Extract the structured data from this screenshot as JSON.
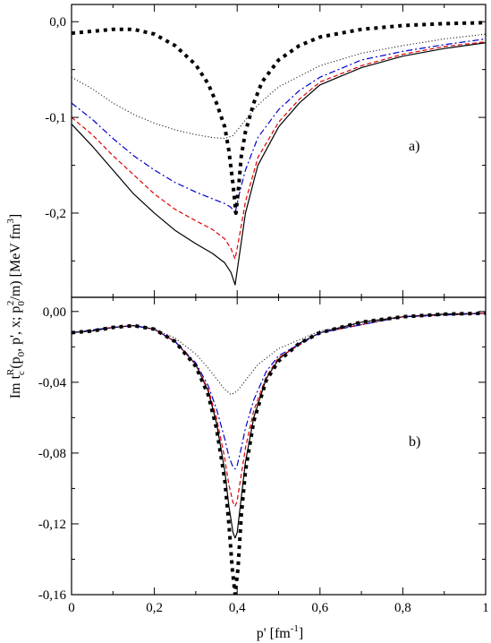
{
  "ylabel_parts": {
    "a": "Im t",
    "b": "c",
    "c": "R",
    "d": "(p",
    "e": "0",
    "f": ", p', x; p",
    "g": "0",
    "h": "2",
    "i": "/m) [MeV fm",
    "j": "3",
    "k": "]"
  },
  "xlabel_parts": {
    "a": "p' [fm",
    "b": "-1",
    "c": "]"
  },
  "chart_data": [
    {
      "type": "line",
      "panel_label": "a)",
      "xlim": [
        0,
        1
      ],
      "ylim": [
        -0.288,
        0.018
      ],
      "x_ticks": [
        0,
        0.2,
        0.4,
        0.6,
        0.8,
        1.0
      ],
      "y_ticks": [
        -0.2,
        -0.1,
        0.0
      ],
      "y_tick_labels": [
        "-0,2",
        "-0,1",
        "0,0"
      ],
      "x_tick_labels": [],
      "series": [
        {
          "style": "solid",
          "color": "#000000",
          "points": [
            [
              0,
              -0.107
            ],
            [
              0.05,
              -0.13
            ],
            [
              0.1,
              -0.155
            ],
            [
              0.15,
              -0.18
            ],
            [
              0.2,
              -0.2
            ],
            [
              0.25,
              -0.218
            ],
            [
              0.3,
              -0.232
            ],
            [
              0.34,
              -0.242
            ],
            [
              0.37,
              -0.252
            ],
            [
              0.385,
              -0.262
            ],
            [
              0.395,
              -0.275
            ],
            [
              0.405,
              -0.245
            ],
            [
              0.42,
              -0.2
            ],
            [
              0.45,
              -0.15
            ],
            [
              0.5,
              -0.11
            ],
            [
              0.55,
              -0.085
            ],
            [
              0.6,
              -0.066
            ],
            [
              0.7,
              -0.048
            ],
            [
              0.8,
              -0.036
            ],
            [
              0.9,
              -0.028
            ],
            [
              1.0,
              -0.022
            ]
          ]
        },
        {
          "style": "dashed",
          "color": "#dd0000",
          "points": [
            [
              0,
              -0.1
            ],
            [
              0.05,
              -0.118
            ],
            [
              0.1,
              -0.14
            ],
            [
              0.15,
              -0.16
            ],
            [
              0.2,
              -0.18
            ],
            [
              0.25,
              -0.196
            ],
            [
              0.3,
              -0.208
            ],
            [
              0.34,
              -0.217
            ],
            [
              0.37,
              -0.227
            ],
            [
              0.385,
              -0.237
            ],
            [
              0.395,
              -0.248
            ],
            [
              0.405,
              -0.225
            ],
            [
              0.42,
              -0.188
            ],
            [
              0.45,
              -0.142
            ],
            [
              0.5,
              -0.105
            ],
            [
              0.55,
              -0.081
            ],
            [
              0.6,
              -0.063
            ],
            [
              0.7,
              -0.046
            ],
            [
              0.8,
              -0.034
            ],
            [
              0.9,
              -0.026
            ],
            [
              1.0,
              -0.021
            ]
          ]
        },
        {
          "style": "dashdot",
          "color": "#0000cc",
          "points": [
            [
              0,
              -0.085
            ],
            [
              0.05,
              -0.102
            ],
            [
              0.1,
              -0.122
            ],
            [
              0.15,
              -0.14
            ],
            [
              0.2,
              -0.155
            ],
            [
              0.25,
              -0.168
            ],
            [
              0.3,
              -0.178
            ],
            [
              0.34,
              -0.185
            ],
            [
              0.37,
              -0.19
            ],
            [
              0.385,
              -0.194
            ],
            [
              0.395,
              -0.2
            ],
            [
              0.405,
              -0.18
            ],
            [
              0.42,
              -0.155
            ],
            [
              0.45,
              -0.121
            ],
            [
              0.5,
              -0.092
            ],
            [
              0.55,
              -0.072
            ],
            [
              0.6,
              -0.058
            ],
            [
              0.7,
              -0.04
            ],
            [
              0.8,
              -0.031
            ],
            [
              0.9,
              -0.024
            ],
            [
              1.0,
              -0.018
            ]
          ]
        },
        {
          "style": "dotted",
          "color": "#000000",
          "points": [
            [
              0,
              -0.058
            ],
            [
              0.05,
              -0.07
            ],
            [
              0.1,
              -0.085
            ],
            [
              0.15,
              -0.097
            ],
            [
              0.2,
              -0.106
            ],
            [
              0.25,
              -0.113
            ],
            [
              0.3,
              -0.118
            ],
            [
              0.34,
              -0.121
            ],
            [
              0.37,
              -0.122
            ],
            [
              0.39,
              -0.119
            ],
            [
              0.41,
              -0.108
            ],
            [
              0.45,
              -0.087
            ],
            [
              0.5,
              -0.068
            ],
            [
              0.6,
              -0.046
            ],
            [
              0.7,
              -0.033
            ],
            [
              0.8,
              -0.025
            ],
            [
              0.9,
              -0.018
            ],
            [
              1.0,
              -0.013
            ]
          ]
        },
        {
          "style": "bigdot",
          "color": "#000000",
          "points": [
            [
              0,
              -0.012
            ],
            [
              0.05,
              -0.01
            ],
            [
              0.1,
              -0.008
            ],
            [
              0.15,
              -0.008
            ],
            [
              0.2,
              -0.013
            ],
            [
              0.25,
              -0.025
            ],
            [
              0.3,
              -0.045
            ],
            [
              0.33,
              -0.065
            ],
            [
              0.35,
              -0.085
            ],
            [
              0.37,
              -0.11
            ],
            [
              0.38,
              -0.135
            ],
            [
              0.39,
              -0.17
            ],
            [
              0.397,
              -0.2
            ],
            [
              0.404,
              -0.17
            ],
            [
              0.41,
              -0.14
            ],
            [
              0.42,
              -0.115
            ],
            [
              0.44,
              -0.085
            ],
            [
              0.46,
              -0.063
            ],
            [
              0.5,
              -0.04
            ],
            [
              0.55,
              -0.025
            ],
            [
              0.6,
              -0.016
            ],
            [
              0.7,
              -0.008
            ],
            [
              0.8,
              -0.004
            ],
            [
              0.9,
              -0.002
            ],
            [
              1.0,
              -0.001
            ]
          ]
        }
      ]
    },
    {
      "type": "line",
      "panel_label": "b)",
      "xlim": [
        0,
        1
      ],
      "ylim": [
        -0.16,
        0.008
      ],
      "x_ticks": [
        0,
        0.2,
        0.4,
        0.6,
        0.8,
        1.0
      ],
      "y_ticks": [
        -0.16,
        -0.12,
        -0.08,
        -0.04,
        0.0
      ],
      "y_tick_labels": [
        "-0,16",
        "-0,12",
        "-0,08",
        "-0,04",
        "0,00"
      ],
      "x_tick_labels": [
        "0",
        "0,2",
        "0,4",
        "0,6",
        "0,8",
        "1"
      ],
      "series": [
        {
          "style": "solid",
          "color": "#000000",
          "points": [
            [
              0,
              -0.012
            ],
            [
              0.05,
              -0.011
            ],
            [
              0.1,
              -0.009
            ],
            [
              0.15,
              -0.008
            ],
            [
              0.2,
              -0.01
            ],
            [
              0.25,
              -0.017
            ],
            [
              0.3,
              -0.03
            ],
            [
              0.33,
              -0.045
            ],
            [
              0.35,
              -0.063
            ],
            [
              0.37,
              -0.09
            ],
            [
              0.38,
              -0.11
            ],
            [
              0.39,
              -0.125
            ],
            [
              0.395,
              -0.128
            ],
            [
              0.4,
              -0.125
            ],
            [
              0.41,
              -0.105
            ],
            [
              0.42,
              -0.085
            ],
            [
              0.44,
              -0.06
            ],
            [
              0.47,
              -0.038
            ],
            [
              0.5,
              -0.027
            ],
            [
              0.55,
              -0.018
            ],
            [
              0.6,
              -0.012
            ],
            [
              0.7,
              -0.006
            ],
            [
              0.8,
              -0.003
            ],
            [
              0.9,
              -0.0015
            ],
            [
              1.0,
              -0.001
            ]
          ]
        },
        {
          "style": "dashed",
          "color": "#dd0000",
          "points": [
            [
              0,
              -0.012
            ],
            [
              0.1,
              -0.009
            ],
            [
              0.15,
              -0.008
            ],
            [
              0.2,
              -0.01
            ],
            [
              0.25,
              -0.017
            ],
            [
              0.3,
              -0.03
            ],
            [
              0.33,
              -0.044
            ],
            [
              0.35,
              -0.06
            ],
            [
              0.37,
              -0.083
            ],
            [
              0.38,
              -0.098
            ],
            [
              0.39,
              -0.108
            ],
            [
              0.395,
              -0.11
            ],
            [
              0.4,
              -0.107
            ],
            [
              0.41,
              -0.092
            ],
            [
              0.42,
              -0.077
            ],
            [
              0.44,
              -0.056
            ],
            [
              0.47,
              -0.037
            ],
            [
              0.5,
              -0.026
            ],
            [
              0.6,
              -0.012
            ],
            [
              0.8,
              -0.003
            ],
            [
              1.0,
              -0.001
            ]
          ]
        },
        {
          "style": "dashdot",
          "color": "#0000cc",
          "points": [
            [
              0,
              -0.012
            ],
            [
              0.1,
              -0.009
            ],
            [
              0.15,
              -0.008
            ],
            [
              0.2,
              -0.01
            ],
            [
              0.25,
              -0.017
            ],
            [
              0.3,
              -0.029
            ],
            [
              0.33,
              -0.042
            ],
            [
              0.35,
              -0.055
            ],
            [
              0.37,
              -0.072
            ],
            [
              0.38,
              -0.082
            ],
            [
              0.39,
              -0.088
            ],
            [
              0.395,
              -0.089
            ],
            [
              0.4,
              -0.087
            ],
            [
              0.41,
              -0.077
            ],
            [
              0.42,
              -0.066
            ],
            [
              0.44,
              -0.05
            ],
            [
              0.47,
              -0.034
            ],
            [
              0.5,
              -0.025
            ],
            [
              0.6,
              -0.012
            ],
            [
              0.8,
              -0.003
            ],
            [
              1.0,
              -0.001
            ]
          ]
        },
        {
          "style": "dotted",
          "color": "#000000",
          "points": [
            [
              0,
              -0.012
            ],
            [
              0.1,
              -0.009
            ],
            [
              0.15,
              -0.008
            ],
            [
              0.2,
              -0.01
            ],
            [
              0.25,
              -0.015
            ],
            [
              0.3,
              -0.024
            ],
            [
              0.33,
              -0.032
            ],
            [
              0.35,
              -0.038
            ],
            [
              0.37,
              -0.044
            ],
            [
              0.385,
              -0.047
            ],
            [
              0.4,
              -0.045
            ],
            [
              0.42,
              -0.039
            ],
            [
              0.45,
              -0.03
            ],
            [
              0.5,
              -0.021
            ],
            [
              0.6,
              -0.011
            ],
            [
              0.8,
              -0.003
            ],
            [
              1.0,
              -0.001
            ]
          ]
        },
        {
          "style": "bigdot",
          "color": "#000000",
          "points": [
            [
              0,
              -0.012
            ],
            [
              0.05,
              -0.011
            ],
            [
              0.1,
              -0.009
            ],
            [
              0.15,
              -0.008
            ],
            [
              0.2,
              -0.01
            ],
            [
              0.25,
              -0.017
            ],
            [
              0.3,
              -0.031
            ],
            [
              0.33,
              -0.047
            ],
            [
              0.35,
              -0.066
            ],
            [
              0.37,
              -0.095
            ],
            [
              0.38,
              -0.12
            ],
            [
              0.388,
              -0.145
            ],
            [
              0.395,
              -0.16
            ],
            [
              0.402,
              -0.145
            ],
            [
              0.41,
              -0.115
            ],
            [
              0.42,
              -0.09
            ],
            [
              0.44,
              -0.062
            ],
            [
              0.47,
              -0.039
            ],
            [
              0.5,
              -0.028
            ],
            [
              0.55,
              -0.018
            ],
            [
              0.6,
              -0.012
            ],
            [
              0.7,
              -0.006
            ],
            [
              0.8,
              -0.003
            ],
            [
              0.9,
              -0.0015
            ],
            [
              1.0,
              -0.001
            ]
          ]
        }
      ]
    }
  ]
}
